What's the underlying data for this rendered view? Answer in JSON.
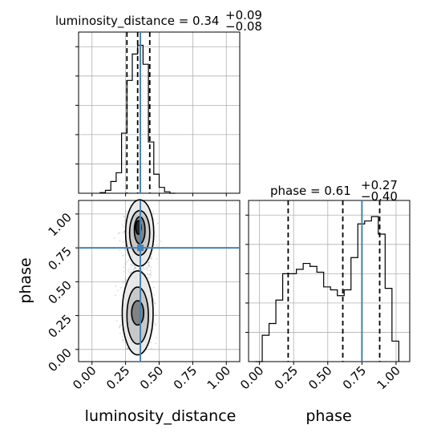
{
  "chart_data": {
    "type": "corner",
    "parameters": [
      "luminosity_distance",
      "phase"
    ],
    "truths": {
      "luminosity_distance": 0.36,
      "phase": 0.75
    },
    "panels": [
      {
        "type": "histogram",
        "parameter": "luminosity_distance",
        "title_main": "luminosity_distance = 0.34",
        "title_sup": "+0.09",
        "title_sub": "−0.08",
        "xlim": [
          -0.1,
          1.1
        ],
        "bin_edges": [
          0.06,
          0.1,
          0.14,
          0.18,
          0.22,
          0.26,
          0.3,
          0.34,
          0.38,
          0.42,
          0.46,
          0.5,
          0.54,
          0.58,
          0.62
        ],
        "counts": [
          0.002,
          0.01,
          0.04,
          0.07,
          0.205,
          0.385,
          0.475,
          0.505,
          0.44,
          0.175,
          0.065,
          0.02,
          0.005,
          0.0
        ],
        "ylim": [
          0,
          0.55
        ],
        "quantiles": [
          0.26,
          0.34,
          0.43
        ],
        "truth": 0.36
      },
      {
        "type": "histogram",
        "parameter": "phase",
        "title_main": "phase = 0.61",
        "title_sup": "+0.27",
        "title_sub": "−0.40",
        "xlim": [
          -0.08,
          1.1
        ],
        "xticks": [
          "0.00",
          "0.25",
          "0.50",
          "0.75",
          "1.00"
        ],
        "xlabel": "phase",
        "bin_edges": [
          -0.03,
          0.02,
          0.07,
          0.12,
          0.17,
          0.22,
          0.27,
          0.32,
          0.37,
          0.42,
          0.47,
          0.52,
          0.57,
          0.62,
          0.67,
          0.72,
          0.77,
          0.82,
          0.87,
          0.92,
          0.97,
          1.02
        ],
        "counts": [
          0.0,
          0.09,
          0.13,
          0.21,
          0.3,
          0.3,
          0.315,
          0.335,
          0.325,
          0.305,
          0.255,
          0.245,
          0.225,
          0.245,
          0.355,
          0.47,
          0.48,
          0.495,
          0.435,
          0.25,
          0.07
        ],
        "ylim": [
          0,
          0.55
        ],
        "quantiles": [
          0.21,
          0.61,
          0.88
        ],
        "truth": 0.75
      },
      {
        "type": "2d_density",
        "x": "luminosity_distance",
        "y": "phase",
        "xlim": [
          -0.1,
          1.1
        ],
        "ylim": [
          -0.09,
          1.1
        ],
        "xticks": [
          "0.00",
          "0.25",
          "0.50",
          "0.75",
          "1.00"
        ],
        "yticks": [
          "0.00",
          "0.25",
          "0.50",
          "0.75",
          "1.00"
        ],
        "xlabel": "luminosity_distance",
        "ylabel": "phase",
        "truth": [
          0.36,
          0.75
        ],
        "modes": [
          {
            "x": 0.35,
            "y": 0.85,
            "sx": 0.045,
            "sy": 0.08,
            "weight": 0.55
          },
          {
            "x": 0.34,
            "y": 0.27,
            "sx": 0.05,
            "sy": 0.14,
            "weight": 0.45
          }
        ]
      }
    ]
  }
}
